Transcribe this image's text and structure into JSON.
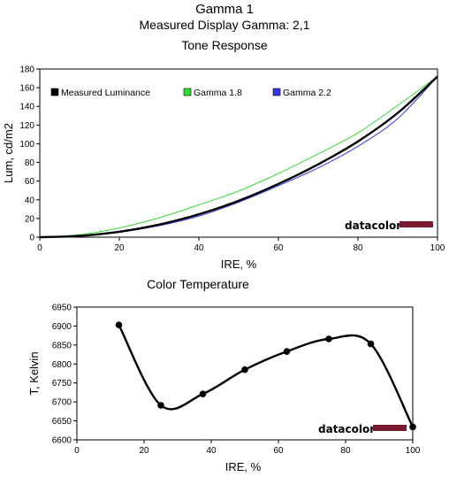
{
  "header": {
    "title": "Gamma 1",
    "subtitle": "Measured Display Gamma: 2,1",
    "chart1_title": "Tone Response",
    "chart2_title": "Color Temperature"
  },
  "logo_text": "datacolor",
  "colors": {
    "measured": "#000000",
    "gamma18": "#33dd33",
    "gamma22": "#3333ee",
    "logo_bar": "#7a1a2e"
  },
  "chart_data": [
    {
      "type": "line",
      "title": "Tone Response",
      "xlabel": "IRE, %",
      "ylabel": "Lum, cd/m2",
      "xlim": [
        0,
        100
      ],
      "ylim": [
        0,
        180
      ],
      "xticks": [
        0,
        20,
        40,
        60,
        80,
        100
      ],
      "yticks": [
        0,
        20,
        40,
        60,
        80,
        100,
        120,
        140,
        160,
        180
      ],
      "grid": false,
      "legend_position": "top",
      "legend": [
        "Measured Luminance",
        "Gamma 1.8",
        "Gamma 2.2"
      ],
      "x": [
        0,
        10,
        20,
        30,
        40,
        50,
        60,
        70,
        80,
        90,
        100
      ],
      "series": [
        {
          "name": "Measured Luminance",
          "color": "#000000",
          "width": 2.4,
          "values": [
            0,
            1.4,
            5.8,
            13.5,
            24.5,
            39,
            57,
            78,
            102.5,
            133,
            172
          ]
        },
        {
          "name": "Gamma 1.8",
          "color": "#33dd33",
          "width": 1,
          "values": [
            0,
            2.7,
            9.9,
            20.7,
            34.6,
            49.4,
            68.2,
            89.2,
            111.7,
            141,
            172
          ]
        },
        {
          "name": "Gamma 2.2",
          "color": "#3333ee",
          "width": 1,
          "values": [
            0,
            1.1,
            5.2,
            12.3,
            22.6,
            37.4,
            55,
            74.2,
            97.3,
            127,
            172
          ]
        }
      ]
    },
    {
      "type": "line",
      "title": "Color Temperature",
      "xlabel": "IRE, %",
      "ylabel": "T, Kelvin",
      "xlim": [
        0,
        100
      ],
      "ylim": [
        6600,
        6950
      ],
      "xticks": [
        0,
        20,
        40,
        60,
        80,
        100
      ],
      "yticks": [
        6600,
        6650,
        6700,
        6750,
        6800,
        6850,
        6900,
        6950
      ],
      "grid": false,
      "series": [
        {
          "name": "",
          "color": "#000000",
          "width": 2.4,
          "x": [
            12.5,
            25,
            37.5,
            50,
            62.5,
            75,
            87.5,
            100
          ],
          "values": [
            6903,
            6691,
            6721,
            6785,
            6833,
            6866,
            6853,
            6634
          ]
        }
      ]
    }
  ]
}
